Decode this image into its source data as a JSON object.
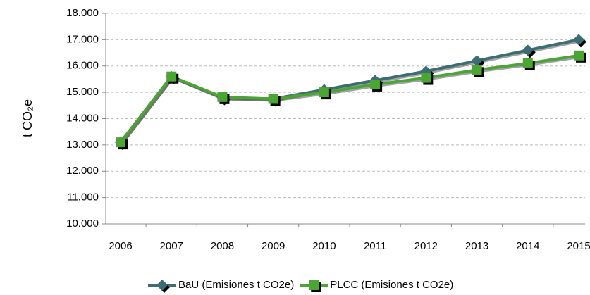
{
  "chart_data": {
    "type": "line",
    "y_label": "t CO₂e",
    "categories": [
      "2006",
      "2007",
      "2008",
      "2009",
      "2010",
      "2011",
      "2012",
      "2013",
      "2014",
      "2015"
    ],
    "series": [
      {
        "name": "BaU (Emisiones t CO2e)",
        "color": "#3b6d72",
        "marker": "diamond",
        "values": [
          13100,
          15600,
          14800,
          14750,
          15100,
          15450,
          15800,
          16200,
          16600,
          17000
        ]
      },
      {
        "name": "PLCC (Emisiones t CO2e)",
        "color": "#4aa534",
        "marker": "square",
        "values": [
          13100,
          15600,
          14820,
          14750,
          15000,
          15300,
          15550,
          15850,
          16100,
          16400
        ]
      }
    ],
    "ylim": [
      10000,
      18000
    ],
    "yticks": [
      {
        "value": 10000,
        "label": "10.000"
      },
      {
        "value": 11000,
        "label": "11.000"
      },
      {
        "value": 12000,
        "label": "12.000"
      },
      {
        "value": 13000,
        "label": "13.000"
      },
      {
        "value": 14000,
        "label": "14.000"
      },
      {
        "value": 15000,
        "label": "15.000"
      },
      {
        "value": 16000,
        "label": "16.000"
      },
      {
        "value": 17000,
        "label": "17.000"
      },
      {
        "value": 18000,
        "label": "18.000"
      }
    ],
    "grid": true
  }
}
